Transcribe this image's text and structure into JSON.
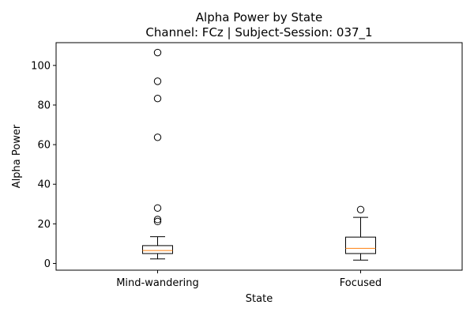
{
  "chart_data": {
    "type": "box",
    "title": "Alpha Power by State",
    "subtitle": "Channel: FCz | Subject-Session: 037_1",
    "xlabel": "State",
    "ylabel": "Alpha Power",
    "ylim": [
      -3.4,
      111.5
    ],
    "yticks": [
      0,
      20,
      40,
      60,
      80,
      100
    ],
    "grid": false,
    "legend": "none",
    "median_color": "#ff7f0e",
    "categories": [
      "Mind-wandering",
      "Focused"
    ],
    "boxes": [
      {
        "category": "Mind-wandering",
        "whisker_low": 2.3,
        "q1": 5.0,
        "median": 6.5,
        "q3": 9.0,
        "whisker_high": 13.5,
        "outliers": [
          106.5,
          92.0,
          83.3,
          63.7,
          28.0,
          22.2,
          21.2
        ]
      },
      {
        "category": "Focused",
        "whisker_low": 1.7,
        "q1": 5.0,
        "median": 7.6,
        "q3": 13.3,
        "whisker_high": 23.3,
        "outliers": [
          27.2
        ]
      }
    ]
  }
}
